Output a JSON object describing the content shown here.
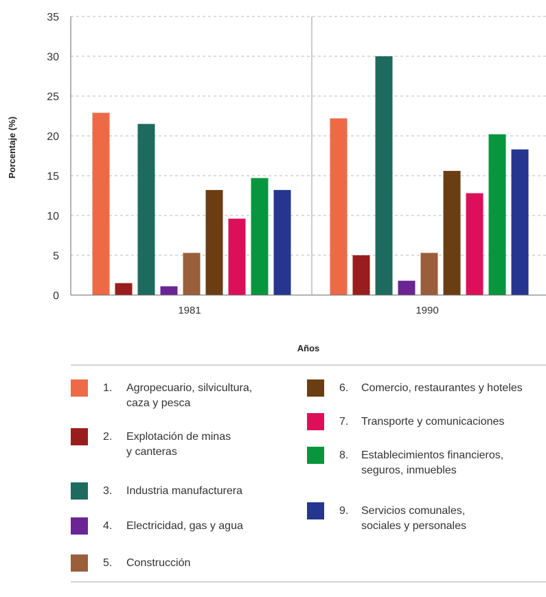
{
  "chart_data": {
    "type": "bar",
    "title": "",
    "xlabel": "Años",
    "ylabel": "Porcentaje  (%)",
    "ylim": [
      0,
      35
    ],
    "yticks": [
      0,
      5,
      10,
      15,
      20,
      25,
      30,
      35
    ],
    "grid": true,
    "legend_position": "bottom",
    "categories": [
      "1981",
      "1990"
    ],
    "series": [
      {
        "number": "1.",
        "name": [
          "Agropecuario, silvicultura,",
          "caza y pesca"
        ],
        "color": "#EE6A47",
        "values": [
          22.9,
          22.2
        ]
      },
      {
        "number": "2.",
        "name": [
          "Explotación de minas",
          "y canteras"
        ],
        "color": "#9A1D1D",
        "values": [
          1.5,
          5.0
        ]
      },
      {
        "number": "3.",
        "name": [
          "Industria manufacturera"
        ],
        "color": "#1D6B5F",
        "values": [
          21.5,
          30.0
        ]
      },
      {
        "number": "4.",
        "name": [
          "Electricidad, gas y agua"
        ],
        "color": "#6B2494",
        "values": [
          1.1,
          1.8
        ]
      },
      {
        "number": "5.",
        "name": [
          "Construcción"
        ],
        "color": "#9A5E3A",
        "values": [
          5.3,
          5.3
        ]
      },
      {
        "number": "6.",
        "name": [
          "Comercio, restaurantes y hoteles"
        ],
        "color": "#6B3D13",
        "values": [
          13.2,
          15.6
        ]
      },
      {
        "number": "7.",
        "name": [
          "Transporte y comunicaciones"
        ],
        "color": "#DD0F5B",
        "values": [
          9.6,
          12.8
        ]
      },
      {
        "number": "8.",
        "name": [
          "Establecimientos financieros,",
          "seguros, inmuebles"
        ],
        "color": "#07963D",
        "values": [
          14.7,
          20.2
        ]
      },
      {
        "number": "9.",
        "name": [
          "Servicios comunales,",
          "sociales y personales"
        ],
        "color": "#263590",
        "values": [
          13.2,
          18.3
        ]
      }
    ]
  }
}
